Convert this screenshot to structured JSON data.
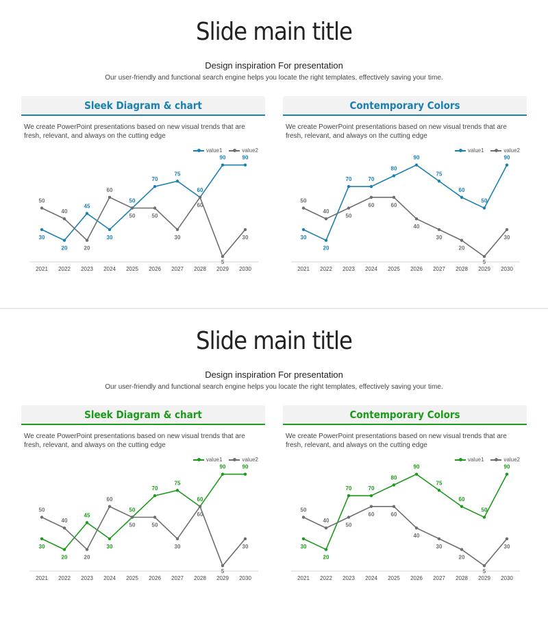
{
  "slides": [
    {
      "title": "Slide main title",
      "subtitle": "Design inspiration For presentation",
      "description": "Our user-friendly and functional search engine helps you locate the right templates, effectively saving your time.",
      "accent": "#1a80b0",
      "panels": [
        {
          "heading": "Sleek Diagram & chart",
          "text": "We create PowerPoint presentations based on  new visual trends that are fresh, relevant, and always on the cutting edge"
        },
        {
          "heading": "Contemporary Colors",
          "text": "We create PowerPoint presentations based on  new visual trends that are fresh, relevant, and always on the cutting edge"
        }
      ]
    },
    {
      "title": "Slide main title",
      "subtitle": "Design inspiration For presentation",
      "description": "Our user-friendly and functional search engine helps you locate the right templates, effectively saving your time.",
      "accent": "#1c9a1c",
      "panels": [
        {
          "heading": "Sleek Diagram & chart",
          "text": "We create PowerPoint presentations based on  new visual trends that are fresh, relevant, and always on the cutting edge"
        },
        {
          "heading": "Contemporary Colors",
          "text": "We create PowerPoint presentations based on  new visual trends that are fresh, relevant, and always on the cutting edge"
        }
      ]
    }
  ],
  "gray": "#6e6e6e",
  "chart_data": [
    {
      "type": "line",
      "title": "",
      "xlabel": "",
      "ylabel": "",
      "ylim": [
        0,
        100
      ],
      "legend": "top-right",
      "categories": [
        "2021",
        "2022",
        "2023",
        "2024",
        "2025",
        "2026",
        "2027",
        "2028",
        "2029",
        "2030"
      ],
      "series": [
        {
          "name": "value1",
          "values": [
            30,
            20,
            45,
            30,
            50,
            70,
            75,
            60,
            90,
            90
          ]
        },
        {
          "name": "value2",
          "values": [
            50,
            40,
            20,
            60,
            50,
            50,
            30,
            60,
            5,
            30
          ]
        }
      ]
    },
    {
      "type": "line",
      "title": "",
      "xlabel": "",
      "ylabel": "",
      "ylim": [
        0,
        100
      ],
      "legend": "top-right",
      "categories": [
        "2021",
        "2022",
        "2023",
        "2024",
        "2025",
        "2026",
        "2027",
        "2028",
        "2029",
        "2030"
      ],
      "series": [
        {
          "name": "value1",
          "values": [
            30,
            20,
            70,
            70,
            80,
            90,
            75,
            60,
            50,
            90
          ]
        },
        {
          "name": "value2",
          "values": [
            50,
            40,
            50,
            60,
            60,
            40,
            30,
            20,
            5,
            30
          ]
        }
      ]
    }
  ]
}
